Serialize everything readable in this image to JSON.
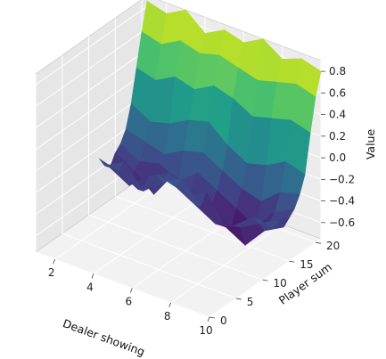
{
  "chart_data": {
    "type": "surface3d",
    "title": "",
    "xlabel": "Dealer showing",
    "ylabel": "Player sum",
    "zlabel": "Value",
    "xlim": [
      1,
      10
    ],
    "ylim": [
      0,
      21
    ],
    "zlim": [
      -0.75,
      0.9
    ],
    "x_ticks": [
      2,
      4,
      6,
      8,
      10
    ],
    "y_ticks": [
      0,
      5,
      10,
      15,
      20
    ],
    "z_ticks": [
      -0.6,
      -0.4,
      -0.2,
      0.0,
      0.2,
      0.4,
      0.6,
      0.8
    ],
    "x_tick_labels": [
      "2",
      "4",
      "6",
      "8",
      "10"
    ],
    "y_tick_labels": [
      "0",
      "5",
      "10",
      "15",
      "20"
    ],
    "z_tick_labels": [
      "−0.6",
      "−0.4",
      "−0.2",
      "0.0",
      "0.2",
      "0.4",
      "0.6",
      "0.8"
    ],
    "colormap": "viridis",
    "grid": true,
    "x": [
      1,
      2,
      3,
      4,
      5,
      6,
      7,
      8,
      9,
      10
    ],
    "y": [
      12,
      13,
      14,
      15,
      16,
      17,
      18,
      19,
      20,
      21
    ],
    "z": [
      [
        -0.3,
        -0.35,
        -0.45,
        -0.25,
        -0.3,
        -0.4,
        -0.5,
        -0.45,
        -0.3,
        -0.35
      ],
      [
        -0.4,
        -0.3,
        -0.5,
        -0.35,
        -0.25,
        -0.45,
        -0.55,
        -0.5,
        -0.4,
        -0.3
      ],
      [
        -0.45,
        -0.55,
        -0.4,
        -0.3,
        -0.45,
        -0.35,
        -0.6,
        -0.7,
        -0.5,
        -0.4
      ],
      [
        -0.35,
        -0.45,
        -0.6,
        -0.35,
        -0.4,
        -0.5,
        -0.65,
        -0.55,
        -0.45,
        -0.35
      ],
      [
        -0.3,
        -0.4,
        -0.35,
        -0.45,
        -0.3,
        -0.4,
        -0.5,
        -0.6,
        -0.4,
        -0.3
      ],
      [
        -0.2,
        -0.25,
        -0.3,
        -0.2,
        -0.15,
        -0.25,
        -0.35,
        -0.4,
        -0.25,
        -0.2
      ],
      [
        0.0,
        -0.1,
        -0.05,
        0.05,
        0.1,
        -0.05,
        -0.15,
        -0.1,
        0.0,
        -0.05
      ],
      [
        0.3,
        0.25,
        0.35,
        0.3,
        0.4,
        0.35,
        0.25,
        0.3,
        0.35,
        0.3
      ],
      [
        0.6,
        0.55,
        0.65,
        0.6,
        0.65,
        0.6,
        0.55,
        0.6,
        0.65,
        0.6
      ],
      [
        0.85,
        0.8,
        0.9,
        0.75,
        0.85,
        0.8,
        0.9,
        0.78,
        0.85,
        0.8
      ]
    ]
  }
}
